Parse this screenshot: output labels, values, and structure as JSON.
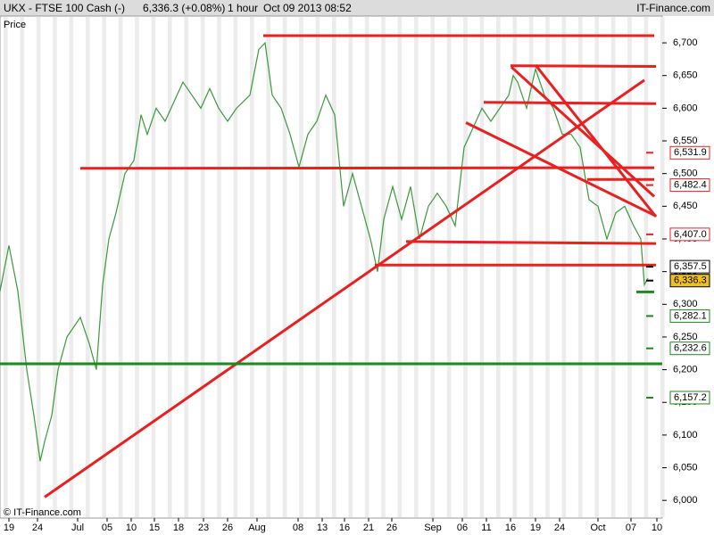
{
  "header": {
    "symbol": "UKX - FTSE 100 Cash (-)",
    "quote": "6,336.3 (+0.08%)",
    "interval": "1 hour",
    "timestamp": "Oct 09 2013 08:52",
    "brand": "IT-Finance.com"
  },
  "footer": "© IT-Finance.com",
  "chart_data": {
    "type": "line",
    "y_label": "Price",
    "x": [
      0,
      10,
      20,
      30,
      38,
      45,
      50,
      58,
      65,
      75,
      90,
      100,
      108,
      115,
      122,
      130,
      140,
      150,
      158,
      165,
      175,
      185,
      195,
      205,
      215,
      225,
      235,
      245,
      255,
      265,
      280,
      290,
      297,
      305,
      315,
      325,
      335,
      345,
      355,
      365,
      375,
      385,
      395,
      405,
      415,
      423,
      430,
      440,
      450,
      460,
      470,
      480,
      490,
      500,
      510,
      520,
      530,
      540,
      550,
      560,
      570,
      575,
      580,
      590,
      600,
      610,
      620,
      630,
      640,
      650,
      660,
      670,
      680,
      690,
      700,
      710,
      718,
      722,
      726
    ],
    "series": [
      {
        "name": "UKX",
        "color": "#3a9a3a",
        "values": [
          6320,
          6390,
          6320,
          6200,
          6130,
          6060,
          6090,
          6130,
          6200,
          6250,
          6280,
          6240,
          6200,
          6330,
          6400,
          6440,
          6500,
          6520,
          6590,
          6560,
          6600,
          6580,
          6610,
          6640,
          6620,
          6600,
          6630,
          6600,
          6580,
          6600,
          6620,
          6690,
          6700,
          6620,
          6600,
          6560,
          6510,
          6560,
          6580,
          6620,
          6590,
          6450,
          6500,
          6450,
          6400,
          6350,
          6430,
          6480,
          6430,
          6480,
          6400,
          6450,
          6470,
          6450,
          6420,
          6540,
          6570,
          6600,
          6580,
          6600,
          6620,
          6650,
          6640,
          6600,
          6660,
          6620,
          6600,
          6560,
          6560,
          6540,
          6460,
          6450,
          6400,
          6440,
          6450,
          6420,
          6400,
          6330,
          6340
        ]
      }
    ],
    "xlim": [
      0,
      742
    ],
    "xticks": [
      {
        "value": 10,
        "label": "19"
      },
      {
        "value": 42,
        "label": "24"
      },
      {
        "value": 87,
        "label": "Jul"
      },
      {
        "value": 120,
        "label": "05"
      },
      {
        "value": 147,
        "label": "10"
      },
      {
        "value": 173,
        "label": "15"
      },
      {
        "value": 200,
        "label": "18"
      },
      {
        "value": 228,
        "label": "23"
      },
      {
        "value": 255,
        "label": "26"
      },
      {
        "value": 288,
        "label": "Aug"
      },
      {
        "value": 334,
        "label": "08"
      },
      {
        "value": 361,
        "label": "13"
      },
      {
        "value": 386,
        "label": "16"
      },
      {
        "value": 413,
        "label": "21"
      },
      {
        "value": 439,
        "label": "26"
      },
      {
        "value": 485,
        "label": "Sep"
      },
      {
        "value": 518,
        "label": "06"
      },
      {
        "value": 545,
        "label": "11"
      },
      {
        "value": 572,
        "label": "16"
      },
      {
        "value": 600,
        "label": "19"
      },
      {
        "value": 627,
        "label": "24"
      },
      {
        "value": 670,
        "label": "Oct"
      },
      {
        "value": 707,
        "label": "07"
      },
      {
        "value": 736,
        "label": "10"
      }
    ],
    "ylim": [
      5973,
      6741
    ],
    "yticks": [
      {
        "value": 6000,
        "label": "6,000"
      },
      {
        "value": 6050,
        "label": "6,050"
      },
      {
        "value": 6100,
        "label": "6,100"
      },
      {
        "value": 6150,
        "label": "6,150"
      },
      {
        "value": 6200,
        "label": "6,200"
      },
      {
        "value": 6250,
        "label": "6,250"
      },
      {
        "value": 6300,
        "label": "6,300"
      },
      {
        "value": 6350,
        "label": "6,350"
      },
      {
        "value": 6400,
        "label": "6,400"
      },
      {
        "value": 6450,
        "label": "6,450"
      },
      {
        "value": 6500,
        "label": "6,500"
      },
      {
        "value": 6550,
        "label": "6,550"
      },
      {
        "value": 6600,
        "label": "6,600"
      },
      {
        "value": 6650,
        "label": "6,650"
      },
      {
        "value": 6700,
        "label": "6,700"
      }
    ],
    "trendlines": [
      {
        "color": "#e82020",
        "x": [
          295,
          733
        ],
        "y": [
          6711,
          6711
        ]
      },
      {
        "color": "#e82020",
        "x": [
          572,
          735
        ],
        "y": [
          6665,
          6664
        ]
      },
      {
        "color": "#e82020",
        "x": [
          542,
          735
        ],
        "y": [
          6609,
          6607
        ]
      },
      {
        "color": "#e82020",
        "x": [
          90,
          733
        ],
        "y": [
          6508,
          6509
        ]
      },
      {
        "color": "#e82020",
        "x": [
          658,
          733
        ],
        "y": [
          6491,
          6491
        ]
      },
      {
        "color": "#e82020",
        "x": [
          455,
          735
        ],
        "y": [
          6396,
          6393
        ]
      },
      {
        "color": "#e82020",
        "x": [
          420,
          735
        ],
        "y": [
          6360,
          6360
        ]
      },
      {
        "color": "#e82020",
        "x": [
          50,
          722
        ],
        "y": [
          6005,
          6643
        ]
      },
      {
        "color": "#e82020",
        "x": [
          522,
          735
        ],
        "y": [
          6578,
          6435
        ]
      },
      {
        "color": "#e82020",
        "x": [
          600,
          735
        ],
        "y": [
          6666,
          6434
        ]
      },
      {
        "color": "#e82020",
        "x": [
          573,
          733
        ],
        "y": [
          6663,
          6465
        ]
      },
      {
        "color": "#1a8a1a",
        "x": [
          0,
          742
        ],
        "y": [
          6209,
          6209
        ]
      },
      {
        "color": "#1a8a1a",
        "x": [
          713,
          733
        ],
        "y": [
          6319,
          6319
        ]
      }
    ],
    "price_labels": [
      {
        "value": 6531.9,
        "label": "6,531.9",
        "color": "#e82020"
      },
      {
        "value": 6482.4,
        "label": "6,482.4",
        "color": "#e82020"
      },
      {
        "value": 6407.0,
        "label": "6,407.0",
        "color": "#e82020"
      },
      {
        "value": 6357.5,
        "label": "6,357.5",
        "color": "#000000"
      },
      {
        "value": 6336.3,
        "label": "6,336.3",
        "color": "#000000",
        "fill": "#f0c020"
      },
      {
        "value": 6282.1,
        "label": "6,282.1",
        "color": "#1a8a1a"
      },
      {
        "value": 6232.6,
        "label": "6,232.6",
        "color": "#1a8a1a"
      },
      {
        "value": 6157.2,
        "label": "6,157.2",
        "color": "#1a8a1a"
      }
    ]
  }
}
